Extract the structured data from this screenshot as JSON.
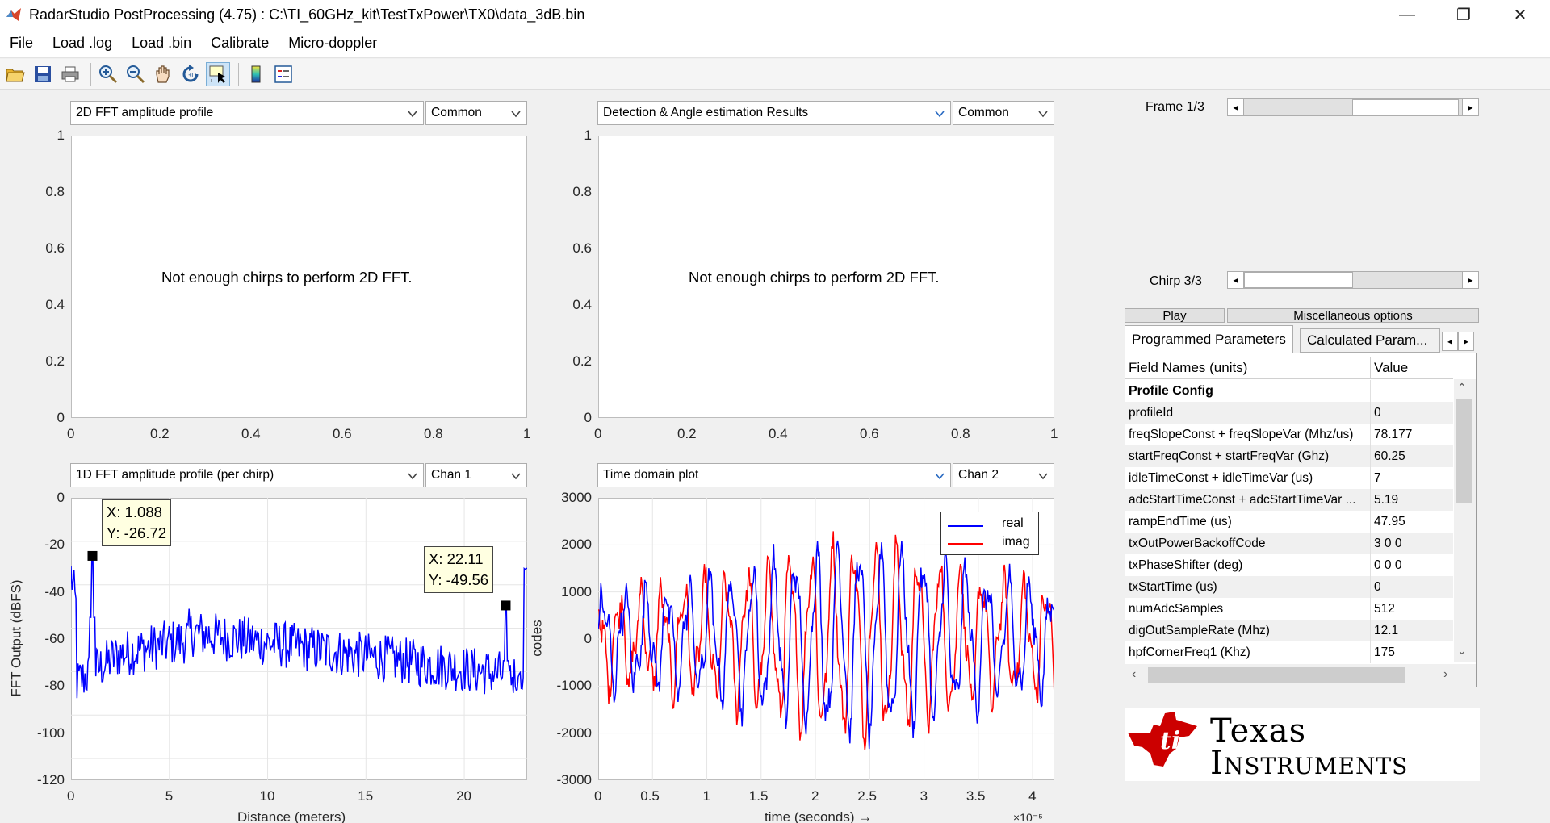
{
  "window": {
    "title": "RadarStudio PostProcessing (4.75)  : C:\\TI_60GHz_kit\\TestTxPower\\TX0\\data_3dB.bin",
    "minimize_glyph": "—",
    "restore_glyph": "❐",
    "close_glyph": "✕"
  },
  "menu": {
    "items": [
      "File",
      "Load .log",
      "Load .bin",
      "Calibrate",
      "Micro-doppler"
    ]
  },
  "toolbar": {
    "icons": [
      "open-icon",
      "save-icon",
      "print-icon",
      "zoom-in-icon",
      "zoom-out-icon",
      "pan-icon",
      "rotate-icon",
      "data-cursor-icon",
      "colorbar-icon",
      "legend-icon"
    ]
  },
  "plot_tl": {
    "select_label": "2D FFT amplitude profile",
    "mode_label": "Common",
    "message": "Not enough chirps to perform 2D FFT.",
    "yticks": [
      "1",
      "0.8",
      "0.6",
      "0.4",
      "0.2",
      "0"
    ],
    "xticks": [
      "0",
      "0.2",
      "0.4",
      "0.6",
      "0.8",
      "1"
    ]
  },
  "plot_tr": {
    "select_label": "Detection & Angle estimation Results",
    "mode_label": "Common",
    "message": "Not enough chirps to perform 2D FFT.",
    "yticks": [
      "1",
      "0.8",
      "0.6",
      "0.4",
      "0.2",
      "0"
    ],
    "xticks": [
      "0",
      "0.2",
      "0.4",
      "0.6",
      "0.8",
      "1"
    ]
  },
  "plot_bl": {
    "select_label": "1D FFT amplitude profile (per chirp)",
    "mode_label": "Chan 1",
    "xlabel": "Distance (meters)",
    "ylabel": "FFT Output (dBFS)",
    "yticks": [
      "0",
      "-20",
      "-40",
      "-60",
      "-80",
      "-100",
      "-120"
    ],
    "xticks": [
      "0",
      "5",
      "10",
      "15",
      "20"
    ],
    "tip1": {
      "x_text": "X: 1.088",
      "y_text": "Y: -26.72"
    },
    "tip2": {
      "x_text": "X: 22.11",
      "y_text": "Y: -49.56"
    }
  },
  "plot_br": {
    "select_label": "Time domain plot",
    "mode_label": "Chan 2",
    "xlabel": "time  (seconds) →",
    "ylabel": "codes",
    "yticks": [
      "3000",
      "2000",
      "1000",
      "0",
      "-1000",
      "-2000",
      "-3000"
    ],
    "xticks": [
      "0",
      "0.5",
      "1",
      "1.5",
      "2",
      "2.5",
      "3",
      "3.5",
      "4"
    ],
    "exponent": "×10⁻⁵",
    "legend": [
      "real",
      "imag"
    ]
  },
  "colors": {
    "series_blue": "#0000ff",
    "series_red": "#ff0000",
    "ti_red": "#cc0000",
    "grid": "#e6e6e6"
  },
  "chart_data": [
    {
      "type": "line",
      "title": "",
      "xlabel": "Distance (meters)",
      "ylabel": "FFT Output (dBFS)",
      "xlim": [
        0,
        23.2
      ],
      "ylim": [
        -130,
        0
      ],
      "series": [
        {
          "values_note": "1D FFT magnitude, peaks at X 1.088 → -26.72 and X 22.11 → -49.56"
        }
      ],
      "markers": [
        {
          "x": 1.088,
          "y": -26.72
        },
        {
          "x": 22.11,
          "y": -49.56
        }
      ]
    },
    {
      "type": "line",
      "title": "",
      "xlabel": "time  (seconds) →",
      "ylabel": "codes",
      "xlim": [
        0,
        4.2
      ],
      "ylim": [
        -3000,
        3000
      ],
      "series": [
        {
          "name": "real"
        },
        {
          "name": "imag"
        }
      ]
    }
  ],
  "right_panel": {
    "frame_label": "Frame 1/3",
    "chirp_label": "Chirp 3/3",
    "play_label": "Play",
    "misc_label": "Miscellaneous options",
    "tab_programmed": "Programmed Parameters",
    "tab_calculated": "Calculated Param...",
    "hdr_name": "Field Names   (units)",
    "hdr_value": "Value",
    "rows": [
      {
        "name": "Profile Config",
        "value": "",
        "section": true
      },
      {
        "name": "profileId",
        "value": "0"
      },
      {
        "name": "freqSlopeConst + freqSlopeVar (Mhz/us)",
        "value": "78.177"
      },
      {
        "name": "startFreqConst + startFreqVar (Ghz)",
        "value": "60.25"
      },
      {
        "name": "idleTimeConst + idleTimeVar (us)",
        "value": "7"
      },
      {
        "name": "adcStartTimeConst + adcStartTimeVar ...",
        "value": "5.19"
      },
      {
        "name": "rampEndTime (us)",
        "value": "47.95"
      },
      {
        "name": "txOutPowerBackoffCode",
        "value": "3 0 0"
      },
      {
        "name": "txPhaseShifter (deg)",
        "value": "0 0 0"
      },
      {
        "name": "txStartTime (us)",
        "value": "0"
      },
      {
        "name": "numAdcSamples",
        "value": "512"
      },
      {
        "name": "digOutSampleRate (Mhz)",
        "value": "12.1"
      },
      {
        "name": "hpfCornerFreq1 (Khz)",
        "value": "175"
      }
    ],
    "logo_line1": "Texas",
    "logo_line2": "Instruments"
  }
}
